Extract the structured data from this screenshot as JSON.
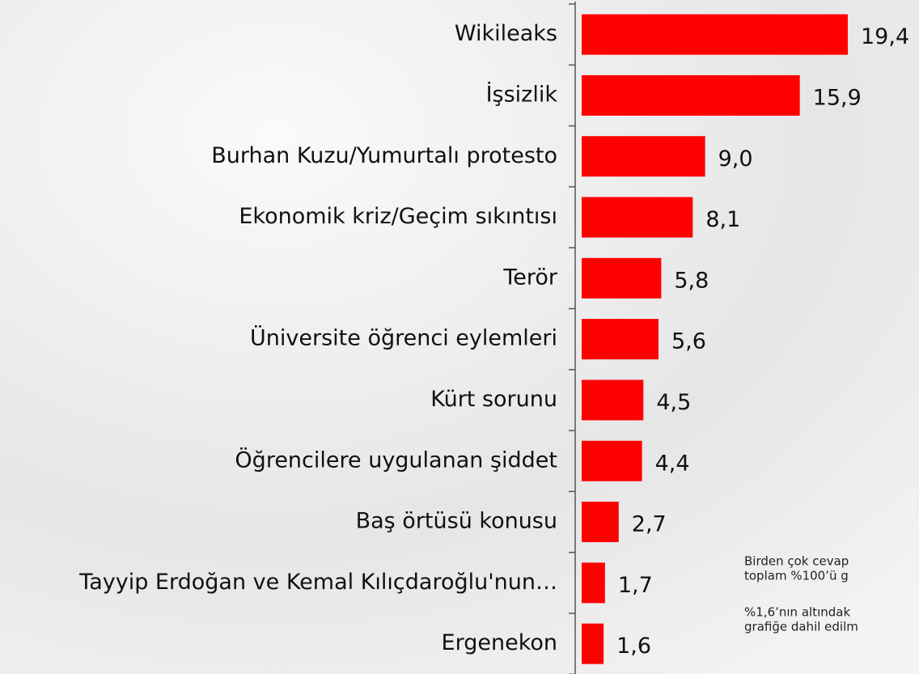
{
  "chart_data": {
    "type": "bar",
    "orientation": "horizontal",
    "color": "#ff0000",
    "categories": [
      "Wikileaks",
      "İşsizlik",
      "Burhan Kuzu/Yumurtalı protesto",
      "Ekonomik kriz/Geçim sıkıntısı",
      "Terör",
      "Üniversite öğrenci eylemleri",
      "Kürt sorunu",
      "Öğrencilere uygulanan şiddet",
      "Baş örtüsü konusu",
      "Tayyip Erdoğan ve Kemal Kılıçdaroğlu'nun…",
      "Ergenekon"
    ],
    "values": [
      19.4,
      15.9,
      9.0,
      8.1,
      5.8,
      5.6,
      4.5,
      4.4,
      2.7,
      1.7,
      1.6
    ],
    "value_labels": [
      "19,4",
      "15,9",
      "9,0",
      "8,1",
      "5,8",
      "5,6",
      "4,5",
      "4,4",
      "2,7",
      "1,7",
      "1,6"
    ],
    "notes": [
      [
        "Birden çok cevap",
        "toplam %100’ü g"
      ],
      [
        "%1,6’nın altındak",
        "grafiğe dahil edilm"
      ]
    ]
  }
}
